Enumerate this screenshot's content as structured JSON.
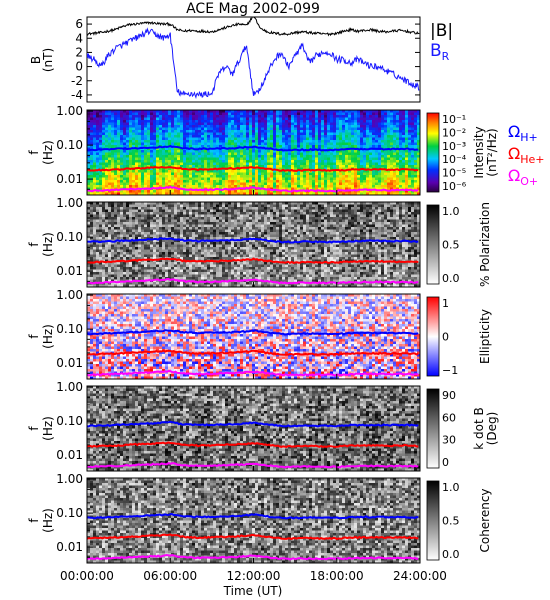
{
  "title": "ACE Mag 2002-099",
  "x_axis": {
    "label": "Time (UT)",
    "ticks": [
      "00:00:00",
      "06:00:00",
      "12:00:00",
      "18:00:00",
      "24:00:00"
    ],
    "range_hours": [
      0,
      24
    ]
  },
  "colors": {
    "B_total": "#000000",
    "B_R": "#1a1aff",
    "omega_H": "#0000ff",
    "omega_He": "#ff0000",
    "omega_O": "#ff00ff"
  },
  "chart_data": [
    {
      "type": "line",
      "panel": "B",
      "ylabel": "B",
      "yunits": "(nT)",
      "ylim": [
        -5,
        7
      ],
      "yticks": [
        "6",
        "4",
        "2",
        "0",
        "-2",
        "-4"
      ],
      "legend": [
        "|B|",
        "B_R"
      ],
      "x": [
        0,
        0.5,
        1,
        1.5,
        2,
        2.5,
        3,
        3.5,
        4,
        4.5,
        5,
        5.5,
        6,
        6.5,
        7,
        7.5,
        8,
        8.5,
        9,
        9.5,
        10,
        10.5,
        11,
        11.5,
        12,
        12.5,
        13,
        13.5,
        14,
        14.5,
        15,
        15.5,
        16,
        16.5,
        17,
        17.5,
        18,
        18.5,
        19,
        19.5,
        20,
        20.5,
        21,
        21.5,
        22,
        22.5,
        23,
        23.5,
        24
      ],
      "series": [
        {
          "name": "|B|",
          "values": [
            4.6,
            4.7,
            4.8,
            5.0,
            5.2,
            5.6,
            5.9,
            6.0,
            6.1,
            6.2,
            6.1,
            6.0,
            6.0,
            5.2,
            5.0,
            5.1,
            5.0,
            5.0,
            4.9,
            5.2,
            5.5,
            5.8,
            6.0,
            5.8,
            7.2,
            5.4,
            4.9,
            4.7,
            4.6,
            4.6,
            4.8,
            4.9,
            4.8,
            4.7,
            4.6,
            4.6,
            4.7,
            5.0,
            5.2,
            5.0,
            5.1,
            5.2,
            5.0,
            4.9,
            5.0,
            5.1,
            5.0,
            4.8,
            4.7
          ]
        },
        {
          "name": "B_R",
          "values": [
            1.5,
            1.0,
            0.0,
            1.5,
            2.5,
            3.0,
            3.5,
            4.0,
            4.5,
            5.0,
            4.5,
            4.0,
            4.5,
            -3.5,
            -4.0,
            -3.8,
            -4.0,
            -3.9,
            -3.8,
            -1.0,
            0.0,
            -1.0,
            1.0,
            3.0,
            -4.0,
            -3.0,
            -1.0,
            1.0,
            2.0,
            0.0,
            1.5,
            3.0,
            0.5,
            1.5,
            2.0,
            2.0,
            1.0,
            1.0,
            0.5,
            1.0,
            0.5,
            0.0,
            0.0,
            -0.5,
            -1.0,
            -1.5,
            -2.0,
            -2.5,
            -3.0
          ]
        }
      ]
    },
    {
      "type": "heatmap",
      "panel": "Intensity",
      "ylabel": "f",
      "yunits": "(Hz)",
      "yscale": "log",
      "ylim": [
        0.003,
        1.0
      ],
      "yticks": [
        "1.00",
        "0.10",
        "0.01"
      ],
      "colorbar": {
        "label": "Intensity",
        "units": "(nT²/Hz)",
        "scale": "log",
        "ticks": [
          "10⁻¹",
          "10⁻²",
          "10⁻³",
          "10⁻⁴",
          "10⁻⁵",
          "10⁻⁶"
        ],
        "colormap": "rainbow"
      }
    },
    {
      "type": "heatmap",
      "panel": "Polarization",
      "ylabel": "f",
      "yunits": "(Hz)",
      "yscale": "log",
      "yticks": [
        "1.00",
        "0.10",
        "0.01"
      ],
      "colorbar": {
        "label": "% Polarization",
        "ticks": [
          "1.0",
          "0.5",
          "0.0"
        ],
        "colormap": "gray"
      }
    },
    {
      "type": "heatmap",
      "panel": "Ellipticity",
      "ylabel": "f",
      "yunits": "(Hz)",
      "yscale": "log",
      "yticks": [
        "1.00",
        "0.10",
        "0.01"
      ],
      "colorbar": {
        "label": "Ellipticity",
        "ticks": [
          "1",
          "0",
          "−1"
        ],
        "colormap": "blue-white-red"
      }
    },
    {
      "type": "heatmap",
      "panel": "kdotB",
      "ylabel": "f",
      "yunits": "(Hz)",
      "yscale": "log",
      "yticks": [
        "1.00",
        "0.10",
        "0.01"
      ],
      "colorbar": {
        "label": "k dot B",
        "units": "(Deg)",
        "ticks": [
          "90",
          "60",
          "30",
          "0"
        ],
        "colormap": "gray"
      }
    },
    {
      "type": "heatmap",
      "panel": "Coherency",
      "ylabel": "f",
      "yunits": "(Hz)",
      "yscale": "log",
      "yticks": [
        "1.00",
        "0.10",
        "0.01"
      ],
      "colorbar": {
        "label": "Coherency",
        "ticks": [
          "1.0",
          "0.5",
          "0.0"
        ],
        "colormap": "gray"
      }
    }
  ],
  "gyrofrequency_lines": {
    "x": [
      0,
      1,
      2,
      3,
      4,
      5,
      6,
      7,
      8,
      9,
      10,
      11,
      12,
      13,
      14,
      15,
      16,
      17,
      18,
      19,
      20,
      21,
      22,
      23,
      24
    ],
    "series": [
      {
        "name": "ΩH+",
        "values": [
          0.072,
          0.074,
          0.076,
          0.08,
          0.083,
          0.087,
          0.092,
          0.08,
          0.077,
          0.078,
          0.08,
          0.083,
          0.09,
          0.08,
          0.072,
          0.072,
          0.074,
          0.072,
          0.072,
          0.076,
          0.077,
          0.077,
          0.076,
          0.077,
          0.073
        ]
      },
      {
        "name": "ΩHe+",
        "values": [
          0.018,
          0.0185,
          0.019,
          0.02,
          0.021,
          0.022,
          0.023,
          0.02,
          0.019,
          0.0195,
          0.02,
          0.021,
          0.0225,
          0.02,
          0.018,
          0.018,
          0.0185,
          0.018,
          0.018,
          0.019,
          0.0193,
          0.0193,
          0.019,
          0.0193,
          0.0183
        ]
      },
      {
        "name": "ΩO+",
        "values": [
          0.0045,
          0.0046,
          0.0048,
          0.005,
          0.0052,
          0.0054,
          0.0057,
          0.005,
          0.0048,
          0.0049,
          0.005,
          0.0052,
          0.0056,
          0.005,
          0.0045,
          0.0045,
          0.0046,
          0.0045,
          0.0045,
          0.0047,
          0.0048,
          0.0048,
          0.0047,
          0.0048,
          0.0046
        ]
      }
    ]
  }
}
